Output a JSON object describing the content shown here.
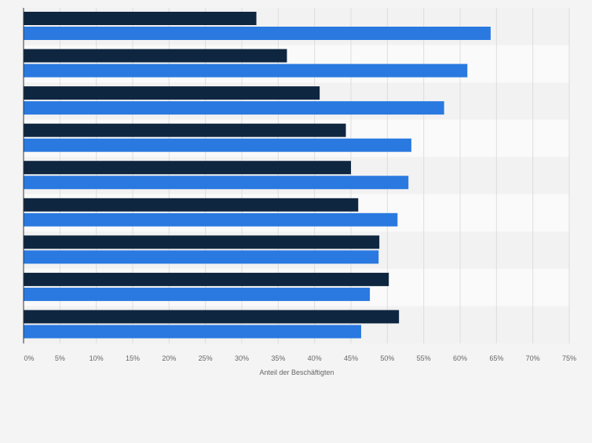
{
  "chart_data": {
    "type": "bar",
    "orientation": "horizontal",
    "categories": [
      "",
      "",
      "",
      "",
      "",
      "",
      "",
      "",
      ""
    ],
    "series": [
      {
        "color": "#0f2640",
        "values": [
          32.0,
          36.2,
          40.7,
          44.3,
          45.0,
          46.0,
          48.9,
          50.2,
          51.6
        ]
      },
      {
        "color": "#2a79e0",
        "values": [
          64.2,
          61.0,
          57.8,
          53.3,
          52.9,
          51.4,
          48.8,
          47.6,
          46.4
        ]
      }
    ],
    "xlabel": "Anteil der Beschäftigten",
    "xlim": [
      0,
      75
    ],
    "xticks": [
      0,
      5,
      10,
      15,
      20,
      25,
      30,
      35,
      40,
      45,
      50,
      55,
      60,
      65,
      70,
      75
    ],
    "xtick_suffix": "%",
    "grid": true,
    "legend": "none"
  }
}
